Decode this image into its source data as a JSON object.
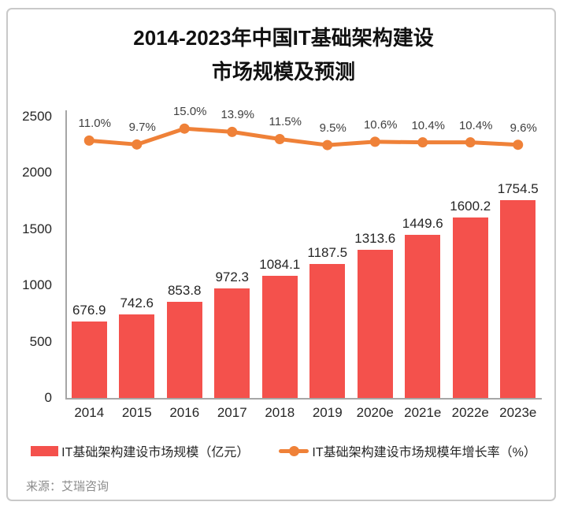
{
  "header": {
    "title_line1": "2014-2023年中国IT基础架构建设",
    "title_line2": "市场规模及预测"
  },
  "chart_data": {
    "type": "bar",
    "title": "2014-2023年中国IT基础架构建设市场规模及预测",
    "categories": [
      "2014",
      "2015",
      "2016",
      "2017",
      "2018",
      "2019",
      "2020e",
      "2021e",
      "2022e",
      "2023e"
    ],
    "series": [
      {
        "name": "IT基础架构建设市场规模（亿元）",
        "type": "bar",
        "color": "#F4514C",
        "values": [
          676.9,
          742.6,
          853.8,
          972.3,
          1084.1,
          1187.5,
          1313.6,
          1449.6,
          1600.2,
          1754.5
        ]
      },
      {
        "name": "IT基础架构建设市场规模年增长率（%）",
        "type": "line",
        "color": "#EF8138",
        "values": [
          11.0,
          9.7,
          15.0,
          13.9,
          11.5,
          9.5,
          10.6,
          10.4,
          10.4,
          9.6
        ]
      }
    ],
    "xlabel": "",
    "ylabel": "",
    "ylim": [
      0,
      2500
    ],
    "yticks": [
      0,
      500,
      1000,
      1500,
      2000,
      2500
    ],
    "y2lim": [
      -75,
      19
    ],
    "grid": false,
    "legend_position": "bottom"
  },
  "legend": {
    "bar_label": "IT基础架构建设市场规模（亿元）",
    "line_label": "IT基础架构建设市场规模年增长率（%）"
  },
  "footer": {
    "source": "来源：艾瑞咨询"
  },
  "colors": {
    "bar": "#F4514C",
    "line": "#EF8138",
    "axis": "#A6A6A6",
    "border": "#C9C9C9"
  }
}
